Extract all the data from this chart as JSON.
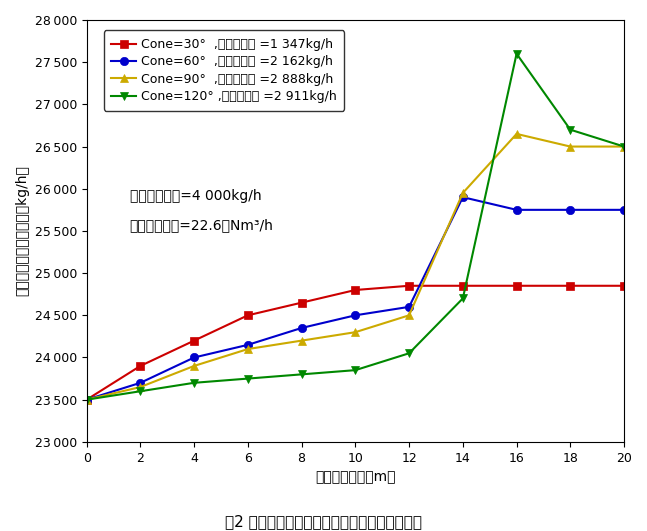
{
  "x": [
    0,
    2,
    4,
    6,
    8,
    10,
    12,
    14,
    16,
    18,
    20
  ],
  "cone30": [
    23500,
    23900,
    24200,
    24500,
    24650,
    24800,
    24850,
    24850,
    24850,
    24850,
    24850
  ],
  "cone60": [
    23500,
    23700,
    24000,
    24150,
    24350,
    24500,
    24600,
    25900,
    25750,
    25750,
    25750
  ],
  "cone90": [
    23500,
    23650,
    23900,
    24100,
    24200,
    24300,
    24500,
    25950,
    26650,
    26500,
    26500
  ],
  "cone120": [
    23500,
    23600,
    23700,
    23750,
    23800,
    23850,
    24050,
    24700,
    27600,
    26700,
    26500
  ],
  "legend": [
    "Cone=30°  ,蔭发废水量 =1 347kg/h",
    "Cone=60°  ,蔭发废水量 =2 162kg/h",
    "Cone=90°  ,蔭发废水量 =2 888kg/h",
    "Cone=120° ,蔭发废水量 =2 911kg/h"
  ],
  "colors": [
    "#cc0000",
    "#0000cc",
    "#ccaa00",
    "#008800"
  ],
  "markers": [
    "s",
    "o",
    "^",
    "v"
  ],
  "xlabel": "塔的轴向高度（m）",
  "ylabel": "烟气中水蕊气质量流量（kg/h）",
  "annotation_line1": "废水质量流量=4 000kg/h",
  "annotation_line2": "烟气体积流量=22.6万Nm³/h",
  "caption": "图2 不同喷嘴锥角下烟气中水蕊气轴向质量分布",
  "ylim": [
    23000,
    28000
  ],
  "xlim": [
    0,
    20
  ],
  "yticks": [
    23000,
    23500,
    24000,
    24500,
    25000,
    25500,
    26000,
    26500,
    27000,
    27500,
    28000
  ],
  "xticks": [
    0,
    2,
    4,
    6,
    8,
    10,
    12,
    14,
    16,
    18,
    20
  ]
}
